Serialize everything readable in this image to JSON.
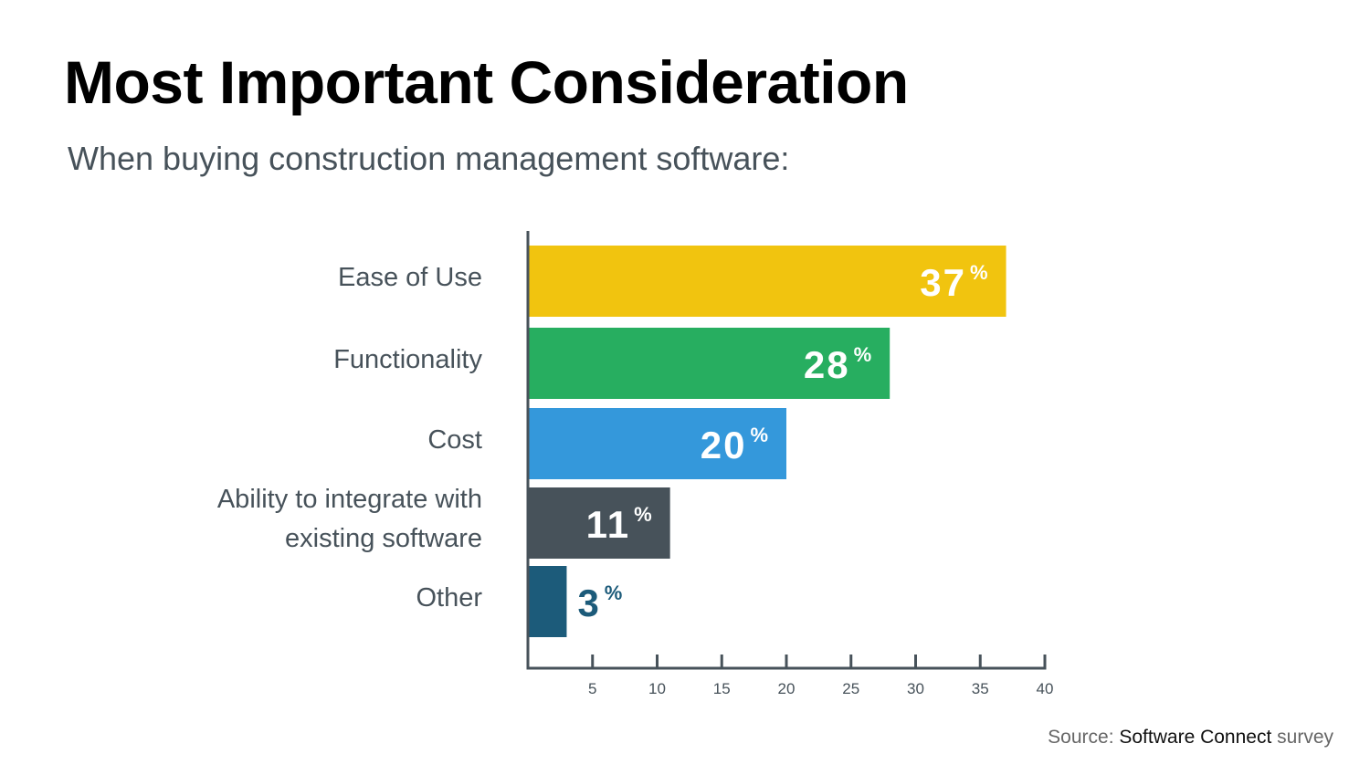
{
  "chart_data": {
    "type": "bar",
    "orientation": "horizontal",
    "title": "Most Important Consideration",
    "subtitle": "When buying construction management software:",
    "categories": [
      "Ease of Use",
      "Functionality",
      "Cost",
      "Ability to integrate with existing software",
      "Other"
    ],
    "values": [
      37,
      28,
      20,
      11,
      3
    ],
    "value_suffix": "%",
    "colors": [
      "#f1c40f",
      "#27ae60",
      "#3498db",
      "#47525a",
      "#1c5b7a"
    ],
    "xlim": [
      0,
      40
    ],
    "xticks": [
      5,
      10,
      15,
      20,
      25,
      30,
      35,
      40
    ],
    "grid": false,
    "source": {
      "prefix": "Source: ",
      "name": "Software Connect",
      "suffix": " survey"
    }
  }
}
